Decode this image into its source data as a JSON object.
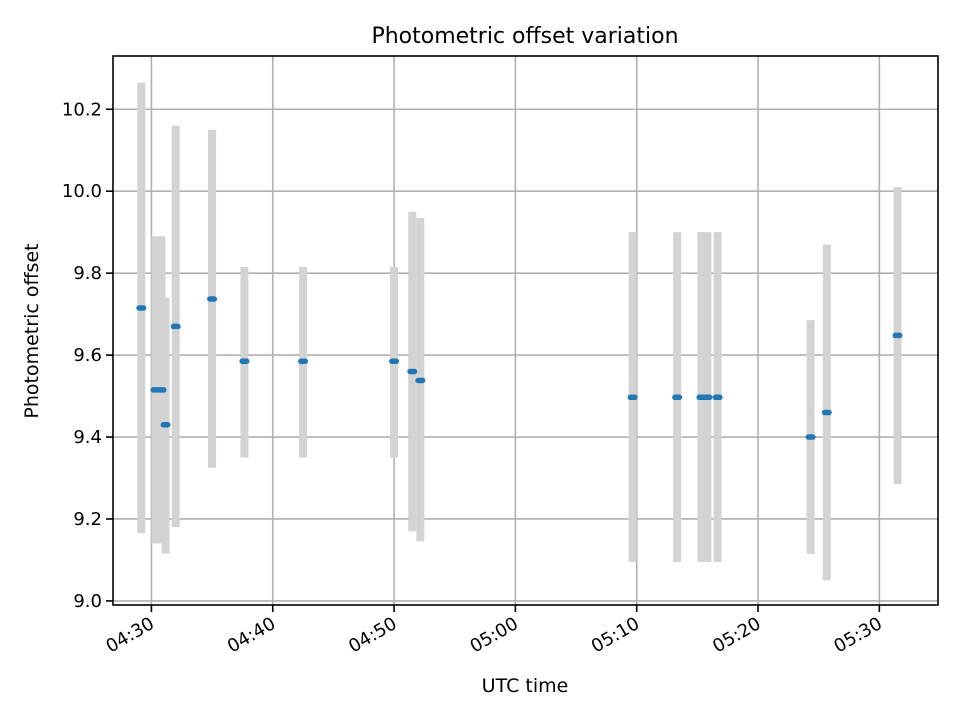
{
  "chart_data": {
    "type": "scatter",
    "title": "Photometric offset variation",
    "xlabel": "UTC time",
    "ylabel": "Photometric offset",
    "x_tick_labels": [
      "04:30",
      "04:40",
      "04:50",
      "05:00",
      "05:10",
      "05:20",
      "05:30"
    ],
    "x_tick_values": [
      "04:30",
      "04:40",
      "04:50",
      "05:00",
      "05:10",
      "05:20",
      "05:30"
    ],
    "y_tick_values": [
      9.0,
      9.2,
      9.4,
      9.6,
      9.8,
      10.0,
      10.2
    ],
    "y_tick_labels": [
      "9.0",
      "9.2",
      "9.4",
      "9.6",
      "9.8",
      "10.0",
      "10.2"
    ],
    "xlim": [
      "04:26:50",
      "05:34:50"
    ],
    "ylim": [
      8.99,
      10.33
    ],
    "grid": true,
    "errorbar_color": "#d3d3d3",
    "marker_color": "#1f77b4",
    "points": [
      {
        "t": "04:29:10",
        "y": 9.715,
        "lo": 9.165,
        "hi": 10.265
      },
      {
        "t": "04:30:20",
        "y": 9.515,
        "lo": 9.14,
        "hi": 9.89
      },
      {
        "t": "04:30:50",
        "y": 9.515,
        "lo": 9.14,
        "hi": 9.89
      },
      {
        "t": "04:31:10",
        "y": 9.43,
        "lo": 9.115,
        "hi": 9.74
      },
      {
        "t": "04:32:00",
        "y": 9.67,
        "lo": 9.18,
        "hi": 10.16
      },
      {
        "t": "04:35:00",
        "y": 9.737,
        "lo": 9.325,
        "hi": 10.15
      },
      {
        "t": "04:37:40",
        "y": 9.585,
        "lo": 9.35,
        "hi": 9.815
      },
      {
        "t": "04:42:30",
        "y": 9.585,
        "lo": 9.35,
        "hi": 9.815
      },
      {
        "t": "04:50:00",
        "y": 9.585,
        "lo": 9.35,
        "hi": 9.815
      },
      {
        "t": "04:51:30",
        "y": 9.56,
        "lo": 9.17,
        "hi": 9.95
      },
      {
        "t": "04:52:10",
        "y": 9.538,
        "lo": 9.145,
        "hi": 9.935
      },
      {
        "t": "05:09:40",
        "y": 9.497,
        "lo": 9.095,
        "hi": 9.9
      },
      {
        "t": "05:13:20",
        "y": 9.497,
        "lo": 9.095,
        "hi": 9.9
      },
      {
        "t": "05:15:20",
        "y": 9.497,
        "lo": 9.095,
        "hi": 9.9
      },
      {
        "t": "05:15:50",
        "y": 9.497,
        "lo": 9.095,
        "hi": 9.9
      },
      {
        "t": "05:16:40",
        "y": 9.497,
        "lo": 9.095,
        "hi": 9.9
      },
      {
        "t": "05:24:20",
        "y": 9.4,
        "lo": 9.115,
        "hi": 9.685
      },
      {
        "t": "05:25:40",
        "y": 9.46,
        "lo": 9.05,
        "hi": 9.87
      },
      {
        "t": "05:31:30",
        "y": 9.648,
        "lo": 9.285,
        "hi": 10.01
      }
    ]
  }
}
